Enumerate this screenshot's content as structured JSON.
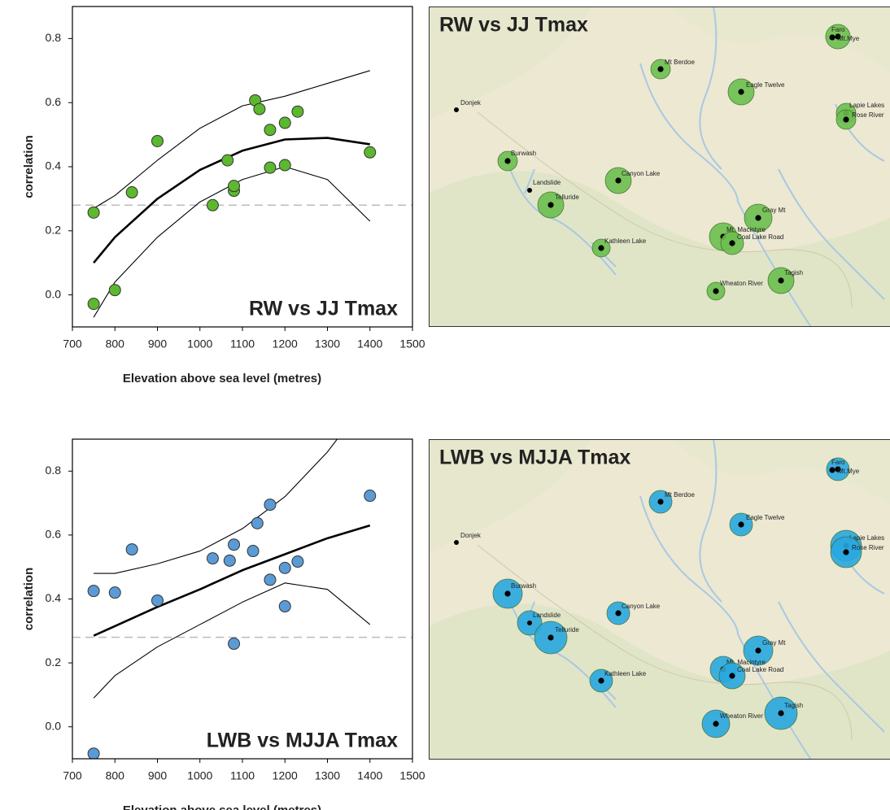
{
  "chart_data": [
    {
      "type": "scatter",
      "annotation": "RW vs JJ Tmax",
      "xlabel": "Elevation above sea level (metres)",
      "ylabel": "correlation",
      "x": [
        750,
        750,
        800,
        840,
        900,
        1030,
        1065,
        1080,
        1080,
        1130,
        1140,
        1165,
        1165,
        1200,
        1200,
        1230,
        1400
      ],
      "values": [
        0.257,
        -0.028,
        0.015,
        0.32,
        0.48,
        0.28,
        0.42,
        0.325,
        0.34,
        0.607,
        0.58,
        0.515,
        0.397,
        0.537,
        0.405,
        0.572,
        0.445
      ],
      "color": "#5cb82e",
      "xlim": [
        700,
        1500
      ],
      "ylim": [
        -0.1,
        0.9
      ],
      "xticks": [
        700,
        800,
        900,
        1000,
        1100,
        1200,
        1300,
        1400,
        1500
      ],
      "yticks": [
        {
          "value": 0,
          "label": "0.0"
        },
        0.2,
        0.4,
        0.6,
        0.8
      ],
      "reference_line": 0.28,
      "fit": {
        "x": [
          750,
          800,
          900,
          1000,
          1100,
          1200,
          1300,
          1400
        ],
        "values": [
          0.1,
          0.18,
          0.3,
          0.39,
          0.45,
          0.485,
          0.49,
          0.47
        ]
      },
      "fit_upper": {
        "x": [
          750,
          800,
          900,
          1000,
          1100,
          1200,
          1300,
          1400
        ],
        "values": [
          0.27,
          0.31,
          0.42,
          0.52,
          0.59,
          0.62,
          0.66,
          0.7
        ]
      },
      "fit_lower": {
        "x": [
          750,
          800,
          900,
          1000,
          1100,
          1200,
          1300,
          1400
        ],
        "values": [
          -0.07,
          0.04,
          0.18,
          0.29,
          0.36,
          0.4,
          0.36,
          0.23
        ]
      }
    },
    {
      "type": "scatter",
      "annotation": "LWB vs MJJA Tmax",
      "xlabel": "Elevation above sea level (metres)",
      "ylabel": "correlation",
      "x": [
        750,
        750,
        800,
        840,
        900,
        1030,
        1070,
        1080,
        1080,
        1125,
        1135,
        1165,
        1165,
        1200,
        1200,
        1230,
        1400
      ],
      "values": [
        0.425,
        -0.084,
        0.42,
        0.555,
        0.395,
        0.527,
        0.52,
        0.57,
        0.26,
        0.55,
        0.637,
        0.695,
        0.46,
        0.497,
        0.377,
        0.517,
        0.723
      ],
      "color": "#5b9bd5",
      "xlim": [
        700,
        1500
      ],
      "ylim": [
        -0.1,
        0.9
      ],
      "xticks": [
        700,
        800,
        900,
        1000,
        1100,
        1200,
        1300,
        1400,
        1500
      ],
      "yticks": [
        {
          "value": 0,
          "label": "0.0"
        },
        0.2,
        0.4,
        0.6,
        0.8
      ],
      "reference_line": 0.28,
      "fit": {
        "x": [
          750,
          800,
          900,
          1000,
          1100,
          1200,
          1300,
          1400
        ],
        "values": [
          0.285,
          0.315,
          0.375,
          0.43,
          0.49,
          0.54,
          0.59,
          0.63
        ]
      },
      "fit_upper": {
        "x": [
          750,
          800,
          900,
          1000,
          1100,
          1200,
          1300,
          1340
        ],
        "values": [
          0.48,
          0.48,
          0.51,
          0.55,
          0.62,
          0.72,
          0.86,
          0.93
        ]
      },
      "fit_lower": {
        "x": [
          750,
          800,
          900,
          1000,
          1100,
          1200,
          1300,
          1400
        ],
        "values": [
          0.09,
          0.16,
          0.25,
          0.32,
          0.39,
          0.45,
          0.43,
          0.32
        ]
      }
    }
  ],
  "maps": [
    {
      "title": "RW vs JJ Tmax",
      "color": "#6cbf4f",
      "sites": [
        "Faro",
        "Mt.Mye",
        "Mt Berdoe",
        "Eagle Twelve",
        "Donjek",
        "Lapie Lakes",
        "Rose River",
        "Burwash",
        "Canyon Lake",
        "Landslide",
        "Telluride",
        "Gray Mt",
        "Mt. Macintyre",
        "Coal Lake Road",
        "Kathleen Lake",
        "Tagish",
        "Wheaton River"
      ]
    },
    {
      "title": "LWB vs MJJA Tmax",
      "color": "#29a8e0",
      "sites": [
        "Faro",
        "Mt.Mye",
        "Mt Berdoe",
        "Eagle Twelve",
        "Donjek",
        "Lapie Lakes",
        "Rose River",
        "Burwash",
        "Canyon Lake",
        "Landslide",
        "Telluride",
        "Gray Mt",
        "Mt. Macintyre",
        "Coal Lake Road",
        "Kathleen Lake",
        "Tagish",
        "Wheaton River"
      ]
    }
  ]
}
